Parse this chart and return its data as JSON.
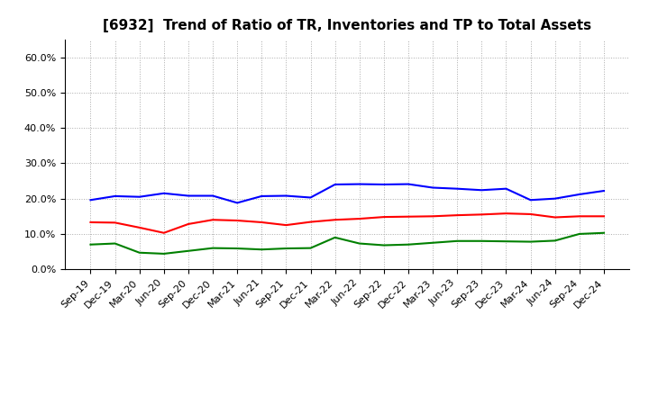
{
  "title": "[6932]  Trend of Ratio of TR, Inventories and TP to Total Assets",
  "x_labels": [
    "Sep-19",
    "Dec-19",
    "Mar-20",
    "Jun-20",
    "Sep-20",
    "Dec-20",
    "Mar-21",
    "Jun-21",
    "Sep-21",
    "Dec-21",
    "Mar-22",
    "Jun-22",
    "Sep-22",
    "Dec-22",
    "Mar-23",
    "Jun-23",
    "Sep-23",
    "Dec-23",
    "Mar-24",
    "Jun-24",
    "Sep-24",
    "Dec-24"
  ],
  "trade_receivables": [
    0.133,
    0.132,
    0.118,
    0.103,
    0.128,
    0.14,
    0.138,
    0.133,
    0.125,
    0.134,
    0.14,
    0.143,
    0.148,
    0.149,
    0.15,
    0.153,
    0.155,
    0.158,
    0.156,
    0.147,
    0.15,
    0.15
  ],
  "inventories": [
    0.196,
    0.207,
    0.205,
    0.215,
    0.208,
    0.208,
    0.188,
    0.207,
    0.208,
    0.203,
    0.24,
    0.241,
    0.24,
    0.241,
    0.231,
    0.228,
    0.224,
    0.228,
    0.196,
    0.2,
    0.212,
    0.222
  ],
  "trade_payables": [
    0.07,
    0.073,
    0.047,
    0.044,
    0.052,
    0.06,
    0.059,
    0.056,
    0.059,
    0.06,
    0.09,
    0.073,
    0.068,
    0.07,
    0.075,
    0.08,
    0.08,
    0.079,
    0.078,
    0.081,
    0.1,
    0.103
  ],
  "colors": {
    "trade_receivables": "#FF0000",
    "inventories": "#0000FF",
    "trade_payables": "#008000"
  },
  "ylim": [
    0.0,
    0.65
  ],
  "yticks": [
    0.0,
    0.1,
    0.2,
    0.3,
    0.4,
    0.5,
    0.6
  ],
  "background_color": "#FFFFFF",
  "grid_color": "#AAAAAA",
  "title_fontsize": 11,
  "tick_fontsize": 8,
  "legend_fontsize": 9,
  "linewidth": 1.5
}
